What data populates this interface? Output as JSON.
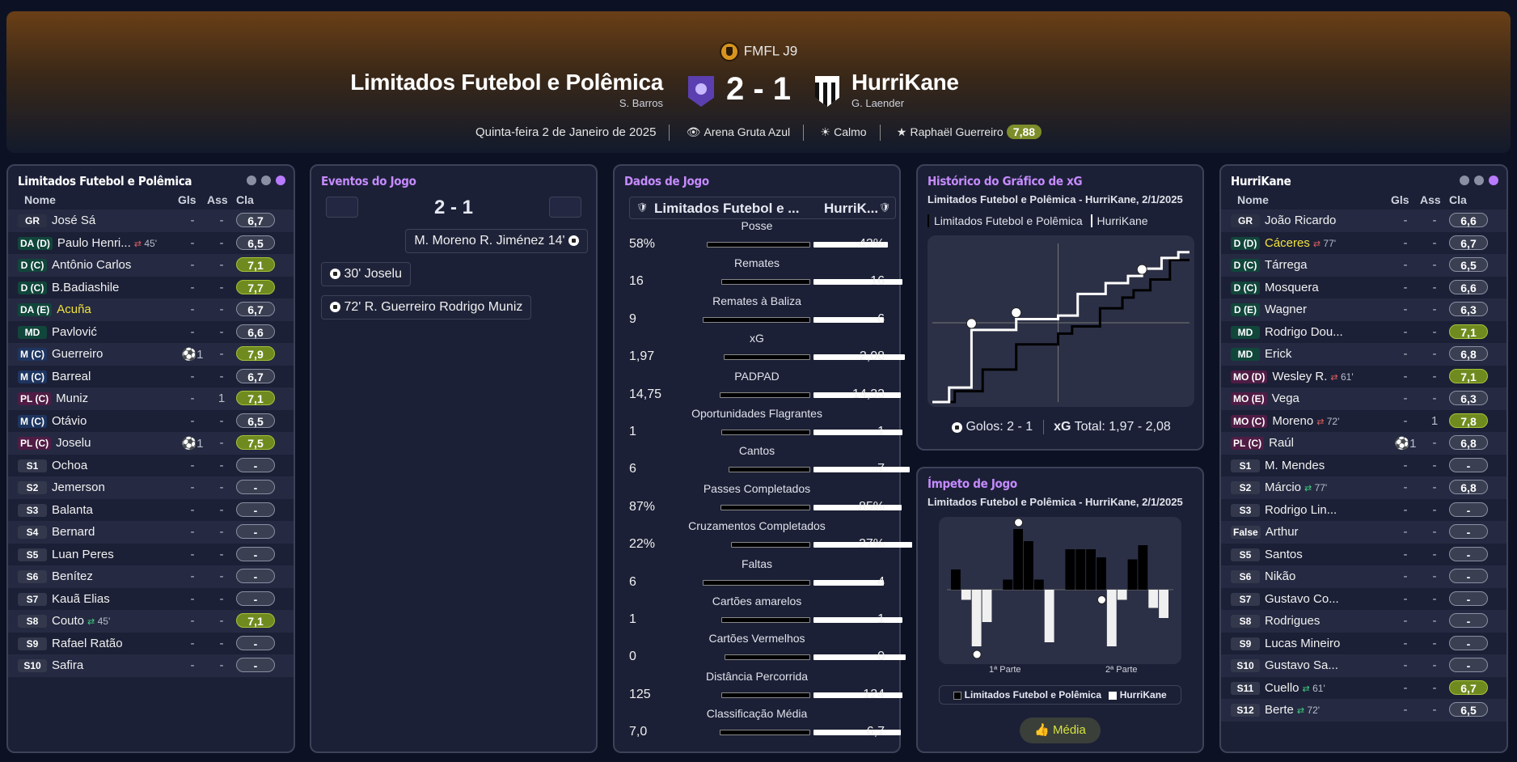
{
  "header": {
    "competition": "FMFL J9",
    "home": "Limitados Futebol e Polêmica",
    "home_manager": "S. Barros",
    "away": "HurriKane",
    "away_manager": "G. Laender",
    "score": "2 - 1",
    "date": "Quinta-feira 2 de Janeiro de 2025",
    "stadium": "Arena Gruta Azul",
    "weather": "Calmo",
    "motm": "Raphaël Guerreiro",
    "motm_rating": "7,88"
  },
  "columns": {
    "name": "Nome",
    "goals": "Gls",
    "assists": "Ass",
    "rating": "Cla"
  },
  "home_panel": {
    "title": "Limitados Futebol e Polêmica",
    "players": [
      {
        "pos": "GR",
        "t": "gk",
        "name": "José Sá",
        "g": "-",
        "a": "-",
        "r": "6,7",
        "hi": false
      },
      {
        "pos": "DA (D)",
        "t": "d",
        "name": "Paulo Henri...",
        "sub": "45'",
        "sd": "out",
        "g": "-",
        "a": "-",
        "r": "6,5",
        "hi": false
      },
      {
        "pos": "D (C)",
        "t": "d",
        "name": "Antônio Carlos",
        "g": "-",
        "a": "-",
        "r": "7,1",
        "hi": true
      },
      {
        "pos": "D (C)",
        "t": "d",
        "name": "B.Badiashile",
        "g": "-",
        "a": "-",
        "r": "7,7",
        "hi": true
      },
      {
        "pos": "DA (E)",
        "t": "d",
        "name": "Acuña",
        "y": true,
        "g": "-",
        "a": "-",
        "r": "6,7",
        "hi": false
      },
      {
        "pos": "MD",
        "t": "d",
        "name": "Pavlović",
        "g": "-",
        "a": "-",
        "r": "6,6",
        "hi": false
      },
      {
        "pos": "M (C)",
        "t": "m",
        "name": "Guerreiro",
        "g": "⚽1",
        "a": "-",
        "r": "7,9",
        "hi": true
      },
      {
        "pos": "M (C)",
        "t": "m",
        "name": "Barreal",
        "g": "-",
        "a": "-",
        "r": "6,7",
        "hi": false
      },
      {
        "pos": "PL (C)",
        "t": "f",
        "name": "Muniz",
        "g": "-",
        "a": "1",
        "r": "7,1",
        "hi": true
      },
      {
        "pos": "M (C)",
        "t": "m",
        "name": "Otávio",
        "g": "-",
        "a": "-",
        "r": "6,5",
        "hi": false
      },
      {
        "pos": "PL (C)",
        "t": "f",
        "name": "Joselu",
        "g": "⚽1",
        "a": "-",
        "r": "7,5",
        "hi": true
      },
      {
        "pos": "S1",
        "t": "s",
        "name": "Ochoa",
        "g": "-",
        "a": "-",
        "r": "-",
        "hi": false
      },
      {
        "pos": "S2",
        "t": "s",
        "name": "Jemerson",
        "g": "-",
        "a": "-",
        "r": "-",
        "hi": false
      },
      {
        "pos": "S3",
        "t": "s",
        "name": "Balanta",
        "g": "-",
        "a": "-",
        "r": "-",
        "hi": false
      },
      {
        "pos": "S4",
        "t": "s",
        "name": "Bernard",
        "g": "-",
        "a": "-",
        "r": "-",
        "hi": false
      },
      {
        "pos": "S5",
        "t": "s",
        "name": "Luan Peres",
        "g": "-",
        "a": "-",
        "r": "-",
        "hi": false
      },
      {
        "pos": "S6",
        "t": "s",
        "name": "Benítez",
        "g": "-",
        "a": "-",
        "r": "-",
        "hi": false
      },
      {
        "pos": "S7",
        "t": "s",
        "name": "Kauã Elias",
        "g": "-",
        "a": "-",
        "r": "-",
        "hi": false
      },
      {
        "pos": "S8",
        "t": "s",
        "name": "Couto",
        "sub": "45'",
        "sd": "in",
        "g": "-",
        "a": "-",
        "r": "7,1",
        "hi": true
      },
      {
        "pos": "S9",
        "t": "s",
        "name": "Rafael Ratão",
        "g": "-",
        "a": "-",
        "r": "-",
        "hi": false
      },
      {
        "pos": "S10",
        "t": "s",
        "name": "Safira",
        "g": "-",
        "a": "-",
        "r": "-",
        "hi": false
      }
    ]
  },
  "away_panel": {
    "title": "HurriKane",
    "players": [
      {
        "pos": "GR",
        "t": "gk",
        "name": "João Ricardo",
        "g": "-",
        "a": "-",
        "r": "6,6",
        "hi": false
      },
      {
        "pos": "D (D)",
        "t": "d",
        "name": "Cáceres",
        "y": true,
        "sub": "77'",
        "sd": "out",
        "g": "-",
        "a": "-",
        "r": "6,7",
        "hi": false
      },
      {
        "pos": "D (C)",
        "t": "d",
        "name": "Tárrega",
        "g": "-",
        "a": "-",
        "r": "6,5",
        "hi": false
      },
      {
        "pos": "D (C)",
        "t": "d",
        "name": "Mosquera",
        "g": "-",
        "a": "-",
        "r": "6,6",
        "hi": false
      },
      {
        "pos": "D (E)",
        "t": "d",
        "name": "Wagner",
        "g": "-",
        "a": "-",
        "r": "6,3",
        "hi": false
      },
      {
        "pos": "MD",
        "t": "d",
        "name": "Rodrigo Dou...",
        "g": "-",
        "a": "-",
        "r": "7,1",
        "hi": true
      },
      {
        "pos": "MD",
        "t": "d",
        "name": "Erick",
        "g": "-",
        "a": "-",
        "r": "6,8",
        "hi": false
      },
      {
        "pos": "MO (D)",
        "t": "f",
        "name": "Wesley R.",
        "sub": "61'",
        "sd": "out",
        "g": "-",
        "a": "-",
        "r": "7,1",
        "hi": true
      },
      {
        "pos": "MO (E)",
        "t": "f",
        "name": "Vega",
        "g": "-",
        "a": "-",
        "r": "6,3",
        "hi": false
      },
      {
        "pos": "MO (C)",
        "t": "f",
        "name": "Moreno",
        "sub": "72'",
        "sd": "out",
        "g": "-",
        "a": "1",
        "r": "7,8",
        "hi": true
      },
      {
        "pos": "PL (C)",
        "t": "f",
        "name": "Raúl",
        "g": "⚽1",
        "a": "-",
        "r": "6,8",
        "hi": false
      },
      {
        "pos": "S1",
        "t": "s",
        "name": "M. Mendes",
        "g": "-",
        "a": "-",
        "r": "-",
        "hi": false
      },
      {
        "pos": "S2",
        "t": "s",
        "name": "Márcio",
        "sub": "77'",
        "sd": "in",
        "g": "-",
        "a": "-",
        "r": "6,8",
        "hi": false
      },
      {
        "pos": "S3",
        "t": "s",
        "name": "Rodrigo Lin...",
        "g": "-",
        "a": "-",
        "r": "-",
        "hi": false
      },
      {
        "pos": "False",
        "t": "s",
        "name": "Arthur",
        "g": "-",
        "a": "-",
        "r": "-",
        "hi": false
      },
      {
        "pos": "S5",
        "t": "s",
        "name": "Santos",
        "g": "-",
        "a": "-",
        "r": "-",
        "hi": false
      },
      {
        "pos": "S6",
        "t": "s",
        "name": "Nikão",
        "g": "-",
        "a": "-",
        "r": "-",
        "hi": false
      },
      {
        "pos": "S7",
        "t": "s",
        "name": "Gustavo Co...",
        "g": "-",
        "a": "-",
        "r": "-",
        "hi": false
      },
      {
        "pos": "S8",
        "t": "s",
        "name": "Rodrigues",
        "g": "-",
        "a": "-",
        "r": "-",
        "hi": false
      },
      {
        "pos": "S9",
        "t": "s",
        "name": "Lucas Mineiro",
        "g": "-",
        "a": "-",
        "r": "-",
        "hi": false
      },
      {
        "pos": "S10",
        "t": "s",
        "name": "Gustavo Sa...",
        "g": "-",
        "a": "-",
        "r": "-",
        "hi": false
      },
      {
        "pos": "S11",
        "t": "s",
        "name": "Cuello",
        "sub": "61'",
        "sd": "in",
        "g": "-",
        "a": "-",
        "r": "6,7",
        "hi": true
      },
      {
        "pos": "S12",
        "t": "s",
        "name": "Berte",
        "sub": "72'",
        "sd": "in",
        "g": "-",
        "a": "-",
        "r": "6,5",
        "hi": false
      }
    ]
  },
  "events": {
    "title": "Eventos do Jogo",
    "score": "2 - 1",
    "items": [
      {
        "text": "M. Moreno  R. Jiménez 14'",
        "side": "away"
      },
      {
        "text": "30'  Joselu",
        "side": "home"
      },
      {
        "text": "72'  R. Guerreiro  Rodrigo Muniz",
        "side": "home"
      }
    ]
  },
  "stats": {
    "title": "Dados de Jogo",
    "home": "Limitados Futebol e ...",
    "away": "HurriK...",
    "rows": [
      {
        "label": "Posse",
        "h": "58%",
        "a": "42%",
        "hv": 58,
        "av": 42
      },
      {
        "label": "Remates",
        "h": "16",
        "a": "16",
        "hv": 16,
        "av": 16
      },
      {
        "label": "Remates à Baliza",
        "h": "9",
        "a": "6",
        "hv": 9,
        "av": 6
      },
      {
        "label": "xG",
        "h": "1,97",
        "a": "2,08",
        "hv": 1.97,
        "av": 2.08
      },
      {
        "label": "PADPAD",
        "h": "14,75",
        "a": "14,33",
        "hv": 14.75,
        "av": 14.33
      },
      {
        "label": "Oportunidades Flagrantes",
        "h": "1",
        "a": "1",
        "hv": 1,
        "av": 1
      },
      {
        "label": "Cantos",
        "h": "6",
        "a": "7",
        "hv": 6,
        "av": 7
      },
      {
        "label": "Passes Completados",
        "h": "87%",
        "a": "85%",
        "hv": 87,
        "av": 85
      },
      {
        "label": "Cruzamentos Completados",
        "h": "22%",
        "a": "27%",
        "hv": 22,
        "av": 27
      },
      {
        "label": "Faltas",
        "h": "6",
        "a": "4",
        "hv": 6,
        "av": 4
      },
      {
        "label": "Cartões amarelos",
        "h": "1",
        "a": "1",
        "hv": 1,
        "av": 1
      },
      {
        "label": "Cartões Vermelhos",
        "h": "0",
        "a": "0",
        "hv": 0,
        "av": 0
      },
      {
        "label": "Distância Percorrida",
        "h": "125",
        "a": "124",
        "hv": 125,
        "av": 124
      },
      {
        "label": "Classificação Média",
        "h": "7,0",
        "a": "6,7",
        "hv": 7.0,
        "av": 6.7
      }
    ]
  },
  "xg": {
    "title": "Histórico do Gráfico de xG",
    "subtitle": "Limitados Futebol e Polêmica - HurriKane, 2/1/2025",
    "legend_home": "Limitados Futebol e Polêmica",
    "legend_away": "HurriKane",
    "goals_label": "Golos:",
    "goals": "2 - 1",
    "xg_label": "xG",
    "xg_total": "Total: 1,97 - 2,08"
  },
  "momentum": {
    "title": "Ímpeto de Jogo",
    "subtitle": "Limitados Futebol e Polêmica - HurriKane, 2/1/2025",
    "half1": "1ª Parte",
    "half2": "2ª Parte",
    "legend_home": "Limitados Futebol e Polêmica",
    "legend_away": "HurriKane",
    "button": "Média"
  },
  "chart_data": [
    {
      "type": "line",
      "series": [
        {
          "name": "Limitados Futebol e Polêmica",
          "x": [
            0,
            8,
            8,
            18,
            18,
            30,
            30,
            45,
            45,
            50,
            50,
            60,
            60,
            68,
            68,
            72,
            72,
            78,
            78,
            85,
            85,
            92
          ],
          "y": [
            0,
            0,
            0.15,
            0.15,
            0.45,
            0.45,
            0.8,
            0.8,
            0.95,
            0.95,
            1.05,
            1.05,
            1.3,
            1.3,
            1.45,
            1.45,
            1.55,
            1.55,
            1.7,
            1.7,
            1.97,
            1.97
          ]
        },
        {
          "name": "HurriKane",
          "x": [
            0,
            6,
            6,
            14,
            14,
            30,
            30,
            45,
            45,
            52,
            52,
            62,
            62,
            70,
            70,
            75,
            75,
            82,
            82,
            88,
            88,
            92
          ],
          "y": [
            0,
            0,
            0.2,
            0.2,
            1.0,
            1.0,
            1.15,
            1.15,
            1.2,
            1.2,
            1.5,
            1.5,
            1.65,
            1.65,
            1.75,
            1.75,
            1.85,
            1.85,
            2.0,
            2.0,
            2.08,
            2.08
          ]
        }
      ]
    },
    {
      "type": "bar",
      "series": [
        {
          "name": "Limitados Futebol e Polêmica",
          "values": [
            0.5,
            0,
            0,
            0,
            0,
            0.25,
            1.5,
            1.2,
            0.25,
            0,
            0,
            1.0,
            1.0,
            1.0,
            0.8,
            0,
            0,
            0.75,
            1.1,
            0,
            0
          ]
        },
        {
          "name": "HurriKane",
          "values": [
            0,
            0.25,
            1.4,
            0.8,
            0,
            0,
            0,
            0,
            0,
            1.3,
            0,
            0,
            0,
            0,
            0,
            1.4,
            0.25,
            0,
            0,
            0.45,
            0.7
          ]
        }
      ]
    }
  ]
}
